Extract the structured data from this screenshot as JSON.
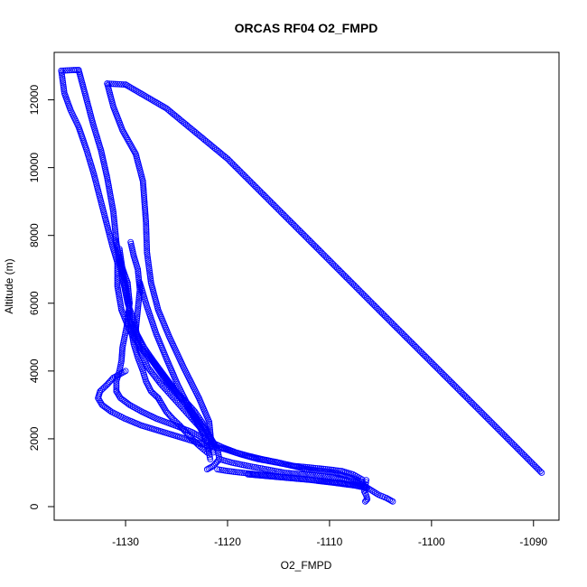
{
  "chart_data": {
    "type": "scatter",
    "title": "ORCAS RF04 O2_FMPD",
    "xlabel": "O2_FMPD",
    "ylabel": "Altitude (m)",
    "xlim": [
      -1137,
      -1087.5
    ],
    "ylim": [
      -400,
      13400
    ],
    "x_ticks": [
      -1130,
      -1120,
      -1110,
      -1100,
      -1090
    ],
    "y_ticks": [
      0,
      2000,
      4000,
      6000,
      8000,
      10000,
      12000
    ],
    "grid": false,
    "marker": "open-circle",
    "color": "#0000ff",
    "series": [
      {
        "segments": [
          {
            "x": [
              -1089.2,
              -1096.0,
              -1104.0,
              -1112.0,
              -1120.0,
              -1126.0,
              -1130.0
            ],
            "y": [
              1000,
              3050,
              5450,
              7860,
              10260,
              11750,
              12450
            ]
          },
          {
            "x": [
              -1130.0,
              -1130.6,
              -1131.2,
              -1131.8
            ],
            "y": [
              12450,
              12460,
              12470,
              12480
            ]
          },
          {
            "x": [
              -1131.8,
              -1131.2,
              -1130.3,
              -1129.0,
              -1128.3,
              -1128.0,
              -1127.9,
              -1127.5,
              -1126.8,
              -1125.7,
              -1124.3,
              -1122.8,
              -1121.8,
              -1121.6
            ],
            "y": [
              12480,
              11800,
              11100,
              10400,
              9600,
              8400,
              7500,
              6600,
              5800,
              5000,
              4100,
              3200,
              2500,
              1900
            ]
          },
          {
            "x": [
              -1129.5,
              -1129.2,
              -1128.8,
              -1128.6,
              -1128.8,
              -1129.0,
              -1128.6,
              -1127.8,
              -1126.5,
              -1125.0,
              -1123.5
            ],
            "y": [
              7800,
              7400,
              7000,
              6400,
              5800,
              5200,
              4600,
              4100,
              3600,
              3100,
              2600
            ]
          },
          {
            "x": [
              -1123.5,
              -1122.6,
              -1121.6,
              -1121.0,
              -1120.8,
              -1121.4,
              -1122.0
            ],
            "y": [
              2600,
              2300,
              2000,
              1700,
              1400,
              1200,
              1100
            ]
          },
          {
            "x": [
              -1131.0,
              -1130.5,
              -1129.8,
              -1129.6,
              -1129.9,
              -1130.3,
              -1130.4,
              -1130.6,
              -1130.9,
              -1130.9
            ],
            "y": [
              7850,
              7200,
              6600,
              6000,
              5300,
              4700,
              4300,
              4000,
              3700,
              3400
            ]
          },
          {
            "x": [
              -1130.9,
              -1130.5,
              -1129.6,
              -1128.4,
              -1127.0,
              -1125.2,
              -1123.5,
              -1122.3,
              -1121.6,
              -1121.4
            ],
            "y": [
              3400,
              3200,
              3000,
              2800,
              2600,
              2400,
              2200,
              2000,
              1800,
              1600
            ]
          },
          {
            "x": [
              -1129.6,
              -1129.0,
              -1128.0,
              -1126.8,
              -1125.6,
              -1124.3,
              -1123.0,
              -1122.0,
              -1121.3
            ],
            "y": [
              5500,
              5100,
              4600,
              4100,
              3600,
              3100,
              2600,
              2200,
              1800
            ]
          },
          {
            "x": [
              -1130.6,
              -1130.2,
              -1129.7,
              -1129.5,
              -1129.2,
              -1128.8,
              -1128.3,
              -1128.0,
              -1127.5,
              -1126.8
            ],
            "y": [
              7600,
              6800,
              6000,
              5300,
              4800,
              4400,
              4000,
              3700,
              3400,
              3200
            ]
          },
          {
            "x": [
              -1126.8,
              -1126.4,
              -1126.0,
              -1125.4,
              -1124.7,
              -1124.1,
              -1123.5,
              -1122.8,
              -1122.0
            ],
            "y": [
              3200,
              3000,
              2800,
              2600,
              2400,
              2200,
              2000,
              1800,
              1600
            ]
          },
          {
            "x": [
              -1128.6,
              -1127.9,
              -1127.0,
              -1125.9,
              -1124.9,
              -1123.9,
              -1123.0,
              -1122.3
            ],
            "y": [
              6600,
              5900,
              5100,
              4300,
              3600,
              3000,
              2500,
              2100
            ]
          },
          {
            "x": [
              -1136.3,
              -1135.7,
              -1135.1,
              -1134.6
            ],
            "y": [
              12860,
              12870,
              12880,
              12880
            ]
          },
          {
            "x": [
              -1134.6,
              -1133.9,
              -1133.2,
              -1132.4,
              -1131.8,
              -1131.2,
              -1130.9,
              -1130.6,
              -1130.2,
              -1129.8,
              -1129.2,
              -1128.9
            ],
            "y": [
              12880,
              12100,
              11300,
              10500,
              9700,
              8700,
              7800,
              7200,
              6600,
              6000,
              5500,
              5100
            ]
          },
          {
            "x": [
              -1128.9,
              -1128.2,
              -1127.3,
              -1126.3,
              -1125.3,
              -1124.3,
              -1123.4,
              -1122.6,
              -1122.2,
              -1121.9,
              -1121.7
            ],
            "y": [
              5100,
              4700,
              4300,
              3900,
              3500,
              3100,
              2700,
              2300,
              2000,
              1700,
              1400
            ]
          },
          {
            "x": [
              -1136.3,
              -1136.0,
              -1135.4,
              -1134.6,
              -1133.8,
              -1133.1,
              -1132.5,
              -1131.9,
              -1131.3,
              -1130.8
            ],
            "y": [
              12860,
              12200,
              11700,
              11200,
              10500,
              9800,
              9100,
              8400,
              7700,
              7200
            ]
          },
          {
            "x": [
              -1130.8,
              -1130.8,
              -1130.4,
              -1129.6,
              -1128.8,
              -1128.0,
              -1127.4,
              -1126.7,
              -1126.0
            ],
            "y": [
              7200,
              6500,
              5800,
              5200,
              4800,
              4500,
              4300,
              4000,
              3700
            ]
          },
          {
            "x": [
              -1126.0,
              -1125.1,
              -1124.1,
              -1123.2,
              -1122.3,
              -1121.6
            ],
            "y": [
              3700,
              3400,
              3100,
              2800,
              2400,
              2000
            ]
          },
          {
            "x": [
              -1130.0,
              -1131.2,
              -1131.8,
              -1132.5,
              -1132.7,
              -1132.3,
              -1131.4,
              -1130.1,
              -1128.5,
              -1126.3,
              -1124.1,
              -1122.0,
              -1120.3
            ],
            "y": [
              4000,
              3800,
              3600,
              3400,
              3200,
              3000,
              2800,
              2600,
              2400,
              2200,
              2000,
              1800,
              1700
            ]
          },
          {
            "x": [
              -1120.3,
              -1118.8,
              -1117.0,
              -1115.2,
              -1113.5,
              -1111.8,
              -1110.2,
              -1108.8,
              -1107.7,
              -1106.8
            ],
            "y": [
              1700,
              1550,
              1400,
              1300,
              1200,
              1150,
              1100,
              1050,
              950,
              800
            ]
          },
          {
            "x": [
              -1106.8,
              -1106.0,
              -1105.2,
              -1104.4,
              -1103.8
            ],
            "y": [
              650,
              500,
              350,
              250,
              150
            ]
          },
          {
            "x": [
              -1121.6,
              -1120.5,
              -1119.2,
              -1118.0,
              -1116.6,
              -1115.0,
              -1113.6,
              -1112.2,
              -1110.9,
              -1109.6,
              -1108.4,
              -1107.4,
              -1106.7
            ],
            "y": [
              1900,
              1750,
              1600,
              1500,
              1400,
              1300,
              1200,
              1100,
              1050,
              1000,
              900,
              800,
              700
            ]
          },
          {
            "x": [
              -1121.0,
              -1120.0,
              -1118.6,
              -1117.0,
              -1115.4,
              -1113.6,
              -1112.0,
              -1110.4,
              -1109.0,
              -1107.8,
              -1106.7
            ],
            "y": [
              1100,
              1050,
              1000,
              950,
              900,
              850,
              800,
              750,
              700,
              650,
              600
            ]
          },
          {
            "x": [
              -1120.8,
              -1119.6,
              -1118.0,
              -1116.2,
              -1114.4,
              -1112.6,
              -1110.8,
              -1109.2,
              -1107.9,
              -1106.8
            ],
            "y": [
              1400,
              1300,
              1200,
              1100,
              1000,
              950,
              900,
              850,
              750,
              650
            ]
          },
          {
            "x": [
              -1118.0,
              -1115.0,
              -1112.0,
              -1109.5,
              -1107.5,
              -1106.4
            ],
            "y": [
              950,
              870,
              790,
              700,
              620,
              550
            ]
          },
          {
            "x": [
              -1106.4,
              -1106.5,
              -1106.6,
              -1106.4,
              -1106.3,
              -1106.5
            ],
            "y": [
              780,
              600,
              450,
              330,
              220,
              150
            ]
          }
        ]
      }
    ]
  }
}
